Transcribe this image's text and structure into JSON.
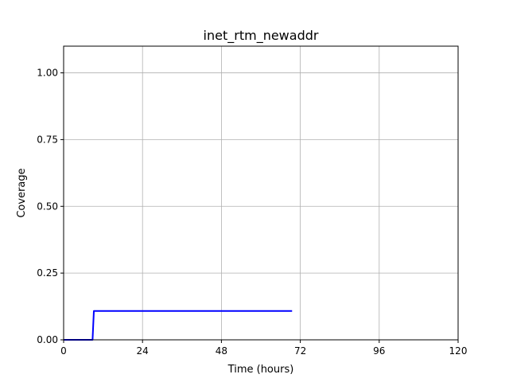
{
  "chart_data": {
    "type": "line",
    "title": "inet_rtm_newaddr",
    "xlabel": "Time (hours)",
    "ylabel": "Coverage",
    "xlim": [
      0,
      120
    ],
    "ylim": [
      0,
      1.1
    ],
    "xticks": [
      0,
      24,
      48,
      72,
      96,
      120
    ],
    "xtick_labels": [
      "0",
      "24",
      "48",
      "72",
      "96",
      "120"
    ],
    "yticks": [
      0,
      0.25,
      0.5,
      0.75,
      1.0
    ],
    "ytick_labels": [
      "0.00",
      "0.25",
      "0.50",
      "0.75",
      "1.00"
    ],
    "grid": true,
    "series": [
      {
        "color": "#0000ff",
        "x": [
          0,
          8.8,
          9.2,
          69.5
        ],
        "y": [
          0,
          0,
          0.108,
          0.108
        ]
      }
    ]
  }
}
